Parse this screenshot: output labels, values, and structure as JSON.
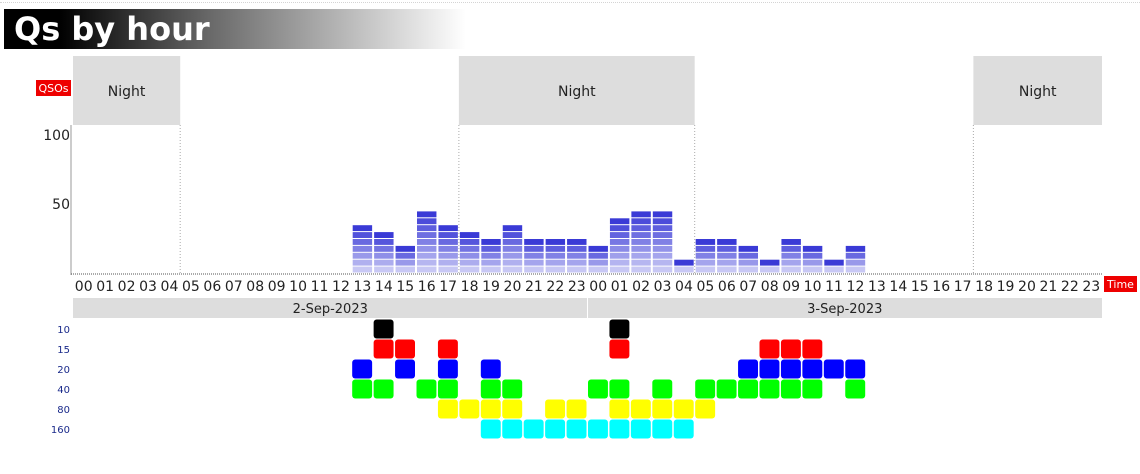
{
  "title": "Qs by hour",
  "chart_data": {
    "type": "bar",
    "ylabel": "QSOs",
    "xlabel": "Time",
    "ylim": [
      0,
      100
    ],
    "yticks": [
      50,
      100
    ],
    "hour_labels": [
      "00",
      "01",
      "02",
      "03",
      "04",
      "05",
      "06",
      "07",
      "08",
      "09",
      "10",
      "11",
      "12",
      "13",
      "14",
      "15",
      "16",
      "17",
      "18",
      "19",
      "20",
      "21",
      "22",
      "23"
    ],
    "days": [
      "2-Sep-2023",
      "3-Sep-2023"
    ],
    "night_label": "Night",
    "night_periods": [
      [
        0,
        5
      ],
      [
        18,
        29
      ],
      [
        42,
        48
      ]
    ],
    "x": [
      "2-Sep-2023 13",
      "2-Sep-2023 14",
      "2-Sep-2023 15",
      "2-Sep-2023 16",
      "2-Sep-2023 17",
      "2-Sep-2023 18",
      "2-Sep-2023 19",
      "2-Sep-2023 20",
      "2-Sep-2023 21",
      "2-Sep-2023 22",
      "2-Sep-2023 23",
      "3-Sep-2023 00",
      "3-Sep-2023 01",
      "3-Sep-2023 02",
      "3-Sep-2023 03",
      "3-Sep-2023 04",
      "3-Sep-2023 05",
      "3-Sep-2023 06",
      "3-Sep-2023 07",
      "3-Sep-2023 08",
      "3-Sep-2023 09",
      "3-Sep-2023 10",
      "3-Sep-2023 11",
      "3-Sep-2023 12"
    ],
    "values": [
      35,
      30,
      20,
      45,
      35,
      30,
      25,
      35,
      25,
      25,
      25,
      20,
      40,
      45,
      45,
      10,
      25,
      25,
      20,
      10,
      25,
      20,
      10,
      20
    ],
    "bands": [
      "10",
      "15",
      "20",
      "40",
      "80",
      "160"
    ],
    "band_colors": {
      "10": "#000000",
      "15": "#ff0000",
      "20": "#0000ff",
      "40": "#00ff00",
      "80": "#ffff00",
      "160": "#00ffff"
    },
    "band_activity": {
      "10": [
        "2-Sep-2023 14",
        "3-Sep-2023 01"
      ],
      "15": [
        "2-Sep-2023 14",
        "2-Sep-2023 15",
        "2-Sep-2023 17",
        "3-Sep-2023 01",
        "3-Sep-2023 08",
        "3-Sep-2023 09",
        "3-Sep-2023 10"
      ],
      "20": [
        "2-Sep-2023 13",
        "2-Sep-2023 15",
        "2-Sep-2023 17",
        "2-Sep-2023 19",
        "3-Sep-2023 07",
        "3-Sep-2023 08",
        "3-Sep-2023 09",
        "3-Sep-2023 10",
        "3-Sep-2023 11",
        "3-Sep-2023 12"
      ],
      "40": [
        "2-Sep-2023 13",
        "2-Sep-2023 14",
        "2-Sep-2023 16",
        "2-Sep-2023 17",
        "2-Sep-2023 19",
        "2-Sep-2023 20",
        "3-Sep-2023 00",
        "3-Sep-2023 01",
        "3-Sep-2023 03",
        "3-Sep-2023 05",
        "3-Sep-2023 06",
        "3-Sep-2023 07",
        "3-Sep-2023 08",
        "3-Sep-2023 09",
        "3-Sep-2023 10",
        "3-Sep-2023 12"
      ],
      "80": [
        "2-Sep-2023 17",
        "2-Sep-2023 18",
        "2-Sep-2023 19",
        "2-Sep-2023 20",
        "2-Sep-2023 22",
        "2-Sep-2023 23",
        "3-Sep-2023 01",
        "3-Sep-2023 02",
        "3-Sep-2023 03",
        "3-Sep-2023 04",
        "3-Sep-2023 05"
      ],
      "160": [
        "2-Sep-2023 19",
        "2-Sep-2023 20",
        "2-Sep-2023 21",
        "2-Sep-2023 22",
        "2-Sep-2023 23",
        "3-Sep-2023 00",
        "3-Sep-2023 01",
        "3-Sep-2023 02",
        "3-Sep-2023 03",
        "3-Sep-2023 04"
      ]
    },
    "colors": {
      "bar_top": "#3a3ad6",
      "bar_bottom": "#c8c8f4",
      "night": "#dddddd",
      "label_badge": "#ee0000",
      "day_band": "#dddddd"
    }
  }
}
